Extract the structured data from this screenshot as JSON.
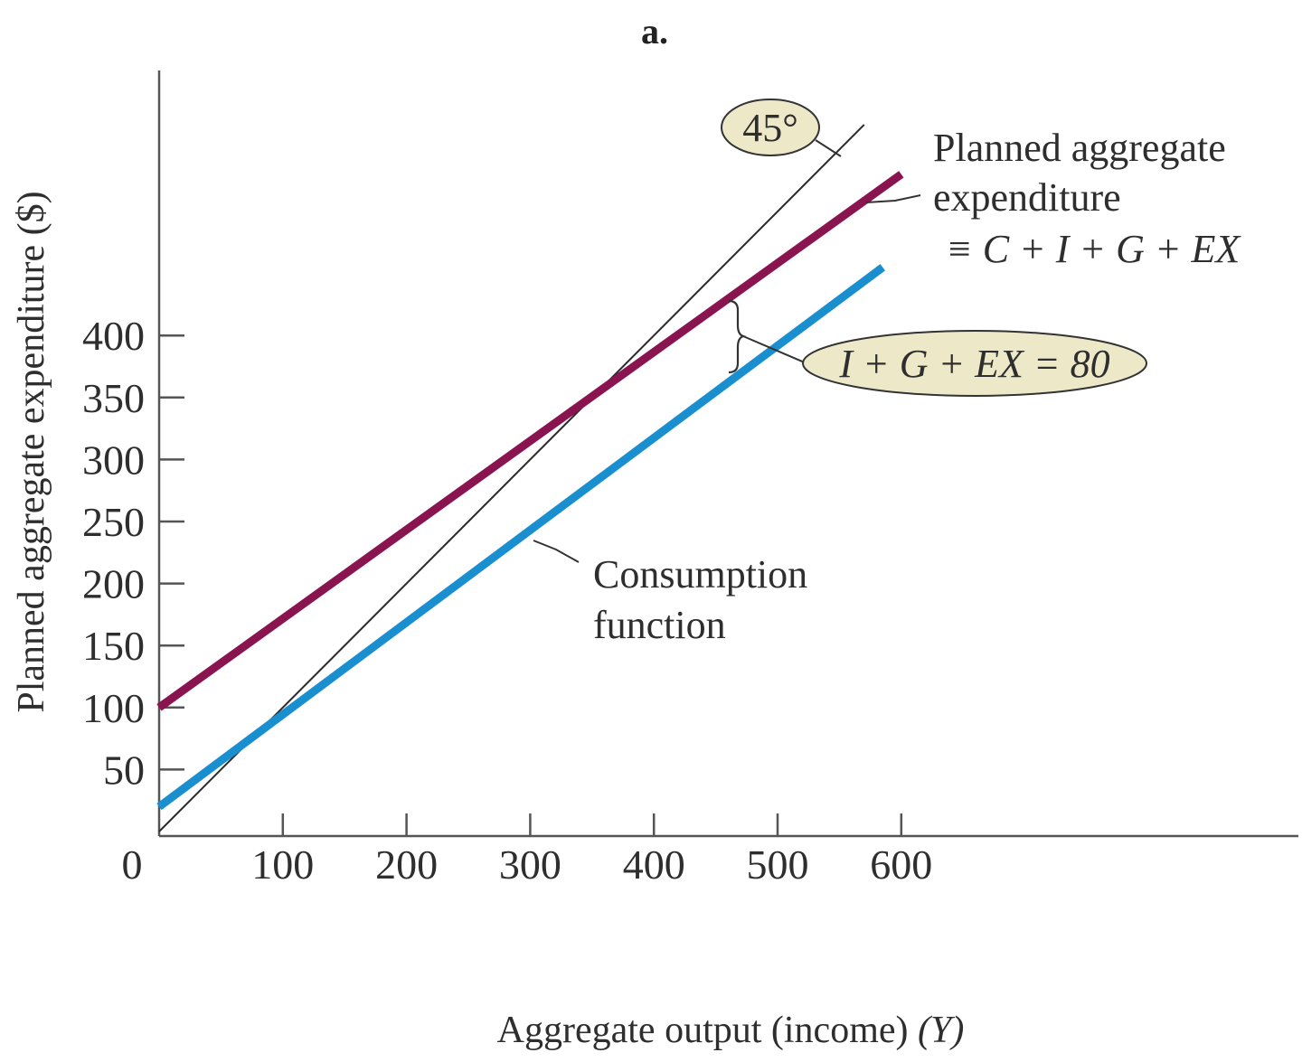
{
  "chart_data": {
    "type": "line",
    "title": "a.",
    "xlabel": "Aggregate output (income)",
    "xlabel_symbol": "(Y)",
    "ylabel": "Planned aggregate expenditure ($)",
    "xlim": [
      0,
      950
    ],
    "ylim": [
      0,
      405
    ],
    "x_ticks": [
      "100",
      "200",
      "300",
      "400",
      "500",
      "600"
    ],
    "y_ticks": [
      "50",
      "100",
      "150",
      "200",
      "250",
      "300",
      "350",
      "400"
    ],
    "origin_label": "0",
    "series": [
      {
        "name_lines": [
          "Planned aggregate",
          "expenditure",
          "≡ C + I + G + EX"
        ],
        "x": [
          0,
          600
        ],
        "y": [
          100,
          530
        ],
        "color": "#8a1450"
      },
      {
        "name_lines": [
          "Consumption",
          "function"
        ],
        "x": [
          0,
          585
        ],
        "y": [
          20,
          455
        ],
        "color": "#1a8fd0"
      },
      {
        "name_lines": [
          "45°"
        ],
        "x": [
          0,
          570
        ],
        "y": [
          0,
          570
        ],
        "color": "#2a2a2a"
      }
    ],
    "annotations": {
      "angle_label": "45°",
      "gap_label": "I + G + EX = 80"
    }
  }
}
